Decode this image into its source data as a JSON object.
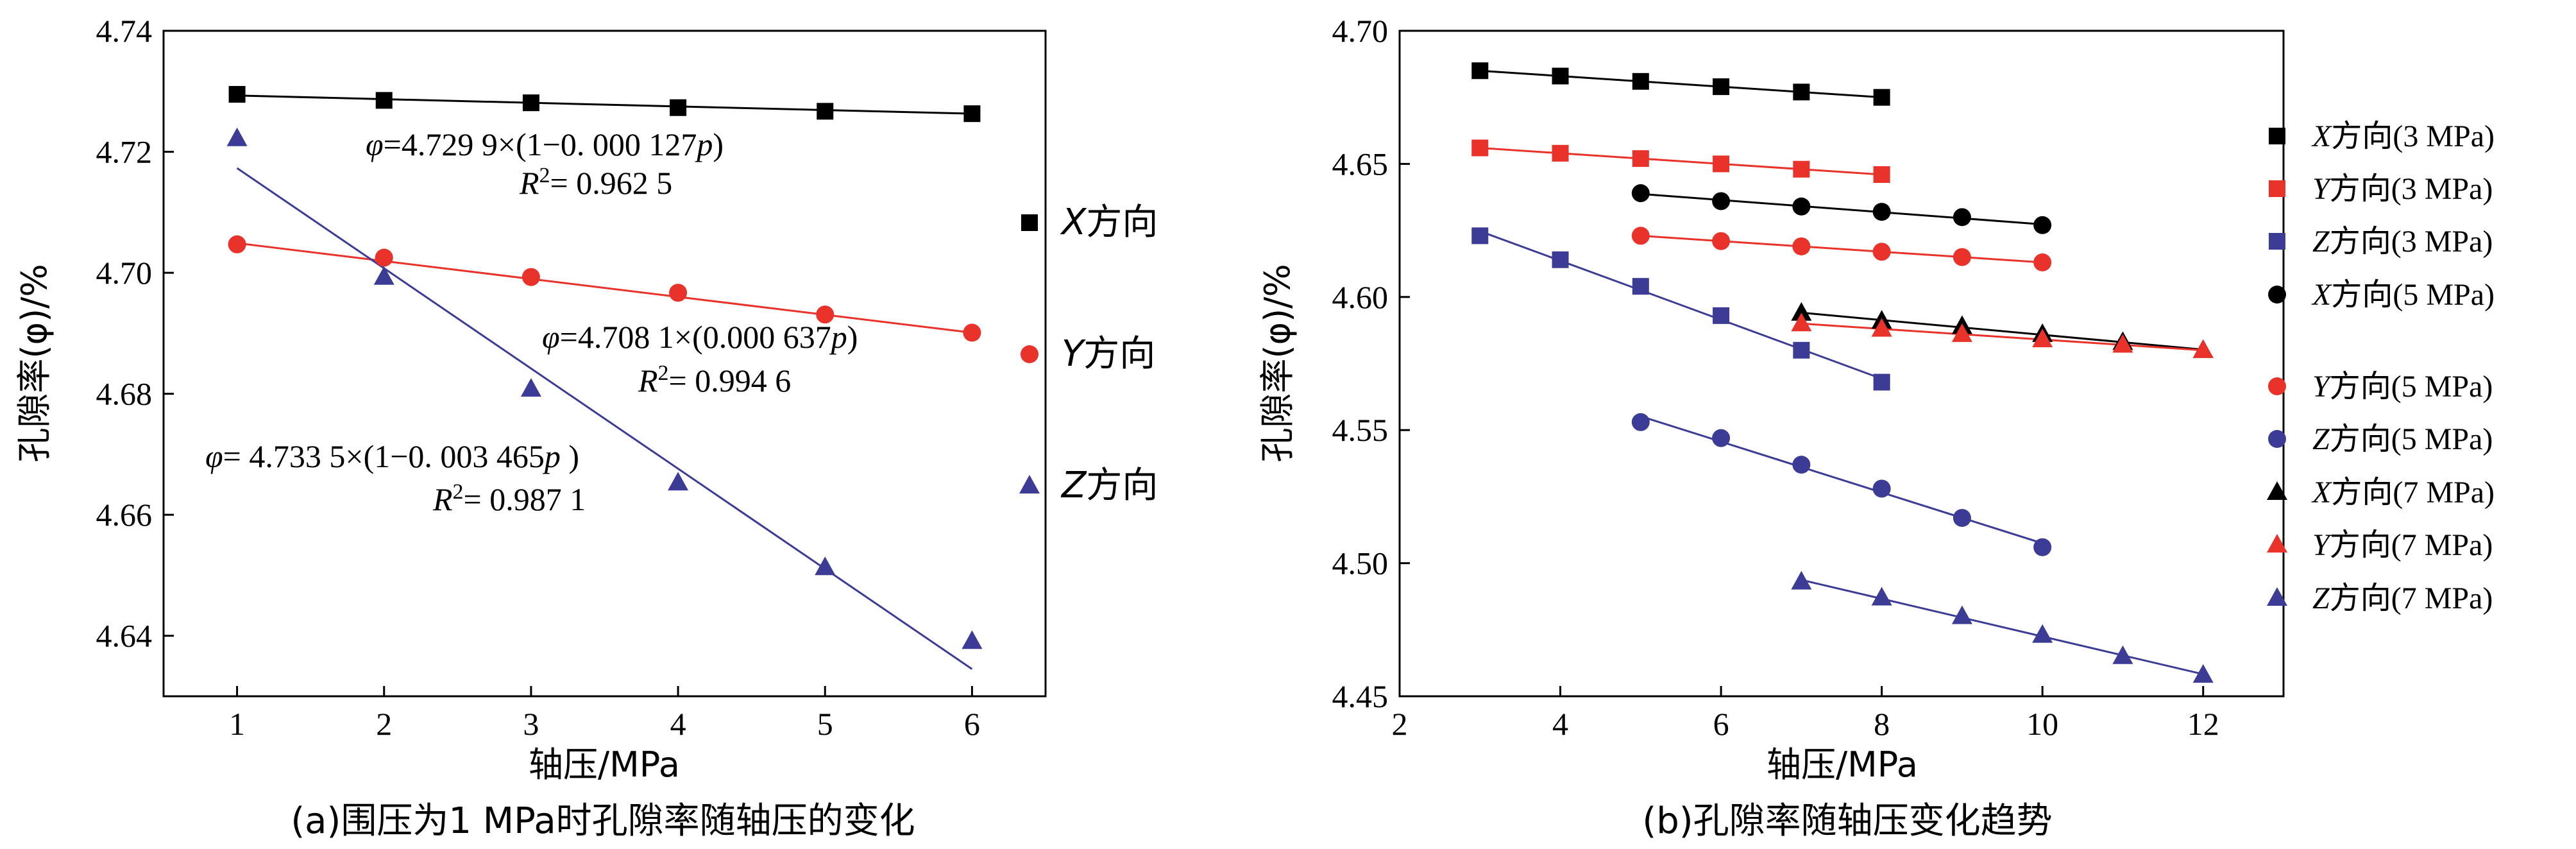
{
  "chart_data": [
    {
      "type": "scatter",
      "panel": "a",
      "caption": "(a)围压为1 MPa时孔隙率随轴压的变化",
      "xlabel": "轴压/MPa",
      "ylabel": "孔隙率(φ)/%",
      "xlim": [
        0.5,
        6.5
      ],
      "ylim": [
        4.63,
        4.74
      ],
      "xticks": [
        "1",
        "2",
        "3",
        "4",
        "5",
        "6"
      ],
      "yticks": [
        "4.64",
        "4.66",
        "4.68",
        "4.70",
        "4.72",
        "4.74"
      ],
      "series": [
        {
          "name": "X方向",
          "prefix": "X",
          "suffix": "方向",
          "marker": "square",
          "color": "#000000",
          "line_color": "#000000",
          "x": [
            1,
            2,
            3,
            4,
            5,
            6
          ],
          "y": [
            4.7295,
            4.7285,
            4.7281,
            4.7273,
            4.7267,
            4.7263
          ],
          "fit": [
            [
              1,
              4.7293
            ],
            [
              6,
              4.7263
            ]
          ]
        },
        {
          "name": "Y方向",
          "prefix": "Y",
          "suffix": "方向",
          "marker": "circle",
          "color": "#e8322a",
          "line_color": "#e8322a",
          "x": [
            1,
            2,
            3,
            4,
            5,
            6
          ],
          "y": [
            4.7047,
            4.7025,
            4.6993,
            4.6967,
            4.6931,
            4.6901
          ],
          "fit": [
            [
              1,
              4.7049
            ],
            [
              6,
              4.6901
            ]
          ]
        },
        {
          "name": "Z方向",
          "prefix": "Z",
          "suffix": "方向",
          "marker": "triangle",
          "color": "#3c3c96",
          "line_color": "#3c3c96",
          "x": [
            1,
            2,
            3,
            4,
            5,
            6
          ],
          "y": [
            4.7222,
            4.6993,
            4.6808,
            4.6653,
            4.6513,
            4.6391
          ],
          "fit": [
            [
              1,
              4.7173
            ],
            [
              6,
              4.6345
            ]
          ]
        }
      ],
      "annotations": [
        {
          "line1": "φ=4.729 9×(1−0. 000 127p)",
          "line2": "R2= 0.962 5"
        },
        {
          "line1": "φ=4.708 1×(0.000 637p)",
          "line2": "R2= 0.994 6"
        },
        {
          "line1": "φ= 4.733 5×(1−0. 003 465p )",
          "line2": "R2= 0.987 1"
        }
      ]
    },
    {
      "type": "scatter",
      "panel": "b",
      "caption": "(b)孔隙率随轴压变化趋势",
      "xlabel": "轴压/MPa",
      "ylabel": "孔隙率(φ)/%",
      "xlim": [
        2,
        13
      ],
      "ylim": [
        4.45,
        4.7
      ],
      "xticks": [
        "2",
        "4",
        "6",
        "8",
        "10",
        "12"
      ],
      "yticks": [
        "4.45",
        "4.50",
        "4.55",
        "4.60",
        "4.65",
        "4.70"
      ],
      "series": [
        {
          "name": "X方向(3 MPa)",
          "prefix": "X",
          "suffix": "方向(3 MPa)",
          "marker": "square",
          "color": "#000000",
          "x": [
            3,
            4,
            5,
            6,
            7,
            8
          ],
          "y": [
            4.685,
            4.683,
            4.681,
            4.679,
            4.677,
            4.675
          ]
        },
        {
          "name": "Y方向(3 MPa)",
          "prefix": "Y",
          "suffix": "方向(3 MPa)",
          "marker": "square",
          "color": "#e8322a",
          "x": [
            3,
            4,
            5,
            6,
            7,
            8
          ],
          "y": [
            4.656,
            4.654,
            4.652,
            4.65,
            4.648,
            4.646
          ]
        },
        {
          "name": "Z方向(3 MPa)",
          "prefix": "Z",
          "suffix": "方向(3 MPa)",
          "marker": "square",
          "color": "#3c3c96",
          "x": [
            3,
            4,
            5,
            6,
            7,
            8
          ],
          "y": [
            4.623,
            4.614,
            4.604,
            4.593,
            4.58,
            4.568
          ]
        },
        {
          "name": "X方向(5 MPa)",
          "prefix": "X",
          "suffix": "方向(5 MPa)",
          "marker": "circle",
          "color": "#000000",
          "x": [
            5,
            6,
            7,
            8,
            9,
            10
          ],
          "y": [
            4.639,
            4.636,
            4.634,
            4.632,
            4.63,
            4.627
          ]
        },
        {
          "name": "Y方向(5 MPa)",
          "prefix": "Y",
          "suffix": "方向(5 MPa)",
          "marker": "circle",
          "color": "#e8322a",
          "x": [
            5,
            6,
            7,
            8,
            9,
            10
          ],
          "y": [
            4.623,
            4.621,
            4.619,
            4.617,
            4.615,
            4.613
          ]
        },
        {
          "name": "Z方向(5 MPa)",
          "prefix": "Z",
          "suffix": "方向(5 MPa)",
          "marker": "circle",
          "color": "#3c3c96",
          "x": [
            5,
            6,
            7,
            8,
            9,
            10
          ],
          "y": [
            4.553,
            4.547,
            4.537,
            4.528,
            4.517,
            4.506
          ]
        },
        {
          "name": "X方向(7 MPa)",
          "prefix": "X",
          "suffix": "方向(7 MPa)",
          "marker": "triangle",
          "color": "#000000",
          "x": [
            7,
            8,
            9,
            10,
            11,
            12
          ],
          "y": [
            4.594,
            4.591,
            4.589,
            4.586,
            4.583,
            4.58
          ]
        },
        {
          "name": "Y方向(7 MPa)",
          "prefix": "Y",
          "suffix": "方向(7 MPa)",
          "marker": "triangle",
          "color": "#e8322a",
          "x": [
            7,
            8,
            9,
            10,
            11,
            12
          ],
          "y": [
            4.59,
            4.588,
            4.586,
            4.584,
            4.582,
            4.58
          ]
        },
        {
          "name": "Z方向(7 MPa)",
          "prefix": "Z",
          "suffix": "方向(7 MPa)",
          "marker": "triangle",
          "color": "#3c3c96",
          "x": [
            7,
            8,
            9,
            10,
            11,
            12
          ],
          "y": [
            4.493,
            4.487,
            4.48,
            4.473,
            4.465,
            4.458
          ]
        }
      ]
    }
  ]
}
